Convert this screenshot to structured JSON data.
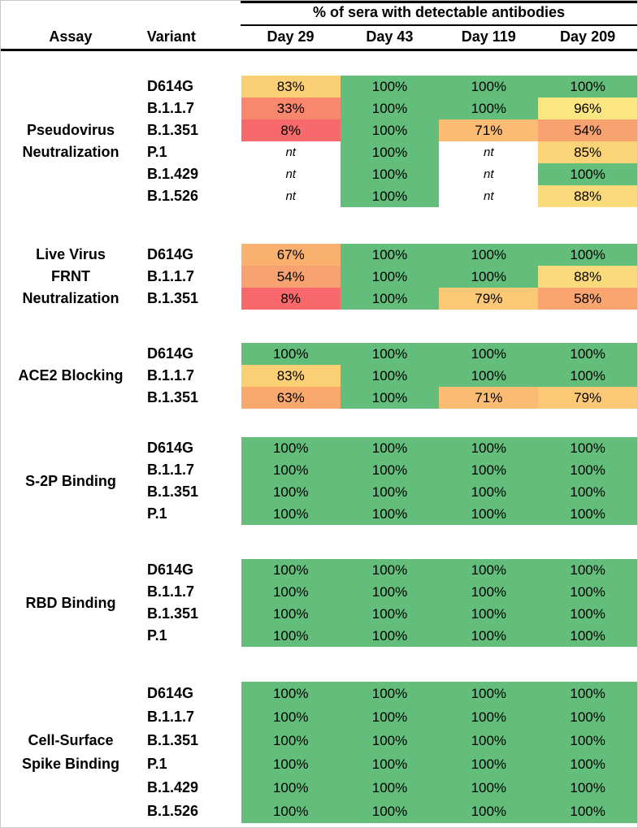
{
  "chart_data": {
    "type": "heatmap",
    "title": "% of sera with detectable antibodies",
    "row_header_columns": {
      "assay": "Assay",
      "variant": "Variant"
    },
    "columns": [
      "Day 29",
      "Day 43",
      "Day 119",
      "Day 209"
    ],
    "value_unit": "%",
    "not_tested_label": "nt",
    "color_scale": {
      "8": "#F8696B",
      "33": "#F8876D",
      "54": "#F9A271",
      "58": "#F9A56F",
      "63": "#F9A96E",
      "67": "#FAB06F",
      "71": "#FABB72",
      "79": "#FBC975",
      "83": "#FBCF73",
      "85": "#FBD477",
      "88": "#FBDA7B",
      "96": "#FCE681",
      "100": "#63BE7B"
    },
    "groups": [
      {
        "assay": "Pseudovirus Neutralization",
        "assay_lines": [
          "Pseudovirus",
          "Neutralization"
        ],
        "rows": [
          {
            "variant": "D614G",
            "values": [
              83,
              100,
              100,
              100
            ]
          },
          {
            "variant": "B.1.1.7",
            "values": [
              33,
              100,
              100,
              96
            ]
          },
          {
            "variant": "B.1.351",
            "values": [
              8,
              100,
              71,
              54
            ]
          },
          {
            "variant": "P.1",
            "values": [
              null,
              100,
              null,
              85
            ]
          },
          {
            "variant": "B.1.429",
            "values": [
              null,
              100,
              null,
              100
            ]
          },
          {
            "variant": "B.1.526",
            "values": [
              null,
              100,
              null,
              88
            ]
          }
        ]
      },
      {
        "assay": "Live Virus FRNT Neutralization",
        "assay_lines": [
          "Live Virus",
          "FRNT",
          "Neutralization"
        ],
        "rows": [
          {
            "variant": "D614G",
            "values": [
              67,
              100,
              100,
              100
            ]
          },
          {
            "variant": "B.1.1.7",
            "values": [
              54,
              100,
              100,
              88
            ]
          },
          {
            "variant": "B.1.351",
            "values": [
              8,
              100,
              79,
              58
            ]
          }
        ]
      },
      {
        "assay": "ACE2 Blocking",
        "assay_lines": [
          "ACE2 Blocking"
        ],
        "rows": [
          {
            "variant": "D614G",
            "values": [
              100,
              100,
              100,
              100
            ]
          },
          {
            "variant": "B.1.1.7",
            "values": [
              83,
              100,
              100,
              100
            ]
          },
          {
            "variant": "B.1.351",
            "values": [
              63,
              100,
              71,
              79
            ]
          }
        ]
      },
      {
        "assay": "S-2P Binding",
        "assay_lines": [
          "S-2P Binding"
        ],
        "rows": [
          {
            "variant": "D614G",
            "values": [
              100,
              100,
              100,
              100
            ]
          },
          {
            "variant": "B.1.1.7",
            "values": [
              100,
              100,
              100,
              100
            ]
          },
          {
            "variant": "B.1.351",
            "values": [
              100,
              100,
              100,
              100
            ]
          },
          {
            "variant": "P.1",
            "values": [
              100,
              100,
              100,
              100
            ]
          }
        ]
      },
      {
        "assay": "RBD Binding",
        "assay_lines": [
          "RBD Binding"
        ],
        "rows": [
          {
            "variant": "D614G",
            "values": [
              100,
              100,
              100,
              100
            ]
          },
          {
            "variant": "B.1.1.7",
            "values": [
              100,
              100,
              100,
              100
            ]
          },
          {
            "variant": "B.1.351",
            "values": [
              100,
              100,
              100,
              100
            ]
          },
          {
            "variant": "P.1",
            "values": [
              100,
              100,
              100,
              100
            ]
          }
        ]
      },
      {
        "assay": "Cell-Surface Spike Binding",
        "assay_lines": [
          "Cell-Surface",
          "Spike Binding"
        ],
        "rows": [
          {
            "variant": "D614G",
            "values": [
              100,
              100,
              100,
              100
            ]
          },
          {
            "variant": "B.1.1.7",
            "values": [
              100,
              100,
              100,
              100
            ]
          },
          {
            "variant": "B.1.351",
            "values": [
              100,
              100,
              100,
              100
            ]
          },
          {
            "variant": "P.1",
            "values": [
              100,
              100,
              100,
              100
            ]
          },
          {
            "variant": "B.1.429",
            "values": [
              100,
              100,
              100,
              100
            ]
          },
          {
            "variant": "B.1.526",
            "values": [
              100,
              100,
              100,
              100
            ]
          }
        ]
      }
    ]
  }
}
